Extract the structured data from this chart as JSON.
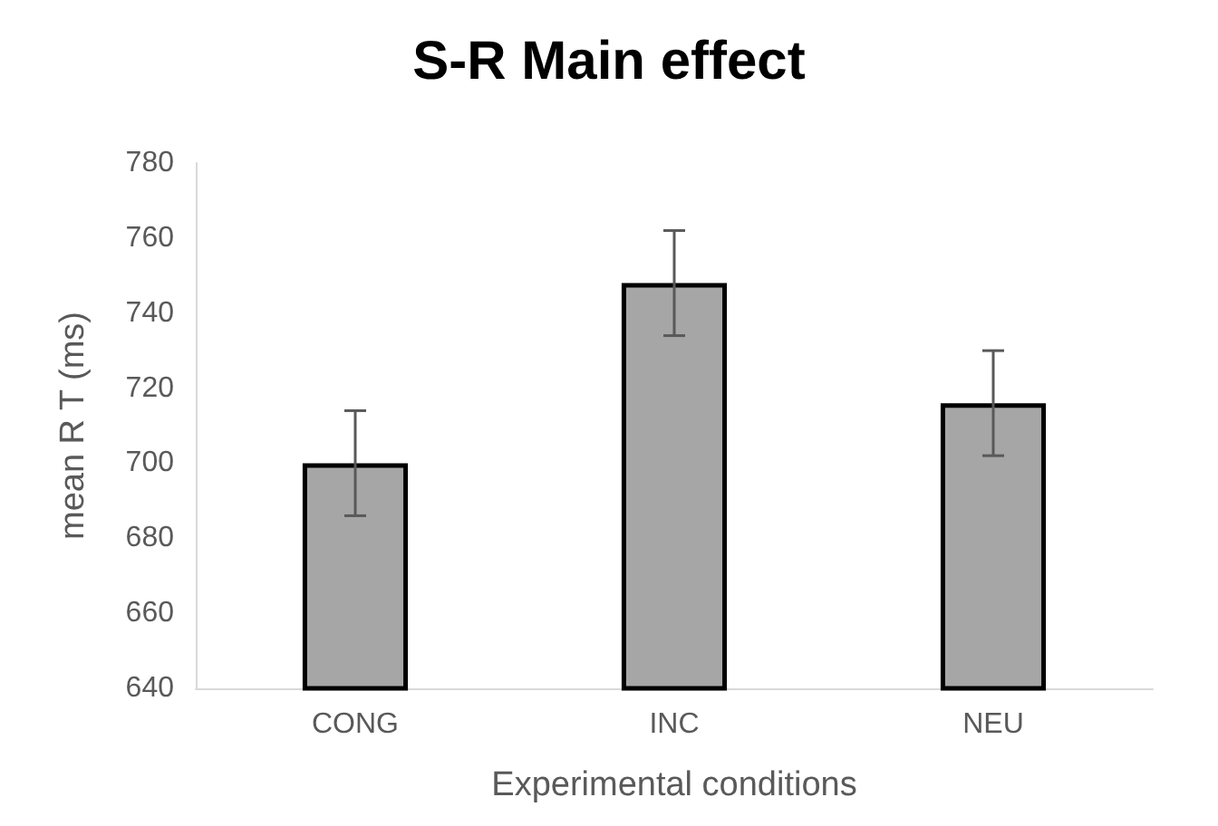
{
  "chart_data": {
    "type": "bar",
    "title": "S-R Main effect",
    "xlabel": "Experimental conditions",
    "ylabel": "mean R T (ms)",
    "categories": [
      "CONG",
      "INC",
      "NEU"
    ],
    "values": [
      700,
      748,
      716
    ],
    "errors": [
      14,
      14,
      14
    ],
    "color": "#a6a6a6",
    "ylim": [
      640,
      780
    ],
    "yticks": [
      640,
      660,
      680,
      700,
      720,
      740,
      760,
      780
    ],
    "grid": false
  }
}
